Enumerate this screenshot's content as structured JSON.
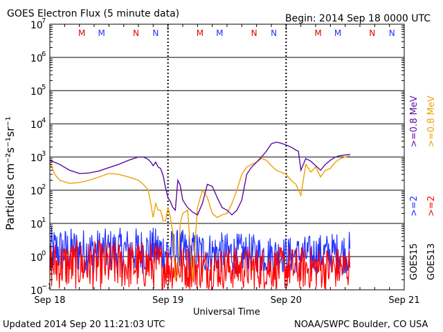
{
  "chart_data": {
    "type": "line",
    "title": "GOES Electron Flux (5 minute data)",
    "begin_label": "Begin: 2014 Sep 18 0000 UTC",
    "xlabel": "Universal Time",
    "ylabel": "Particles cm⁻²s⁻¹sr⁻¹",
    "y_scale": "log",
    "ylim_exponents": [
      -1,
      7
    ],
    "y_tick_base": "10",
    "y_tick_exponents": [
      "7",
      "6",
      "5",
      "4",
      "3",
      "2",
      "1",
      "0",
      "−1"
    ],
    "x_ticks": [
      "Sep 18",
      "Sep 19",
      "Sep 20",
      "Sep 21"
    ],
    "threshold_line": 1000,
    "grid": true,
    "noon_midnight_markers": [
      "M",
      "M",
      "N",
      "N",
      "M",
      "M",
      "N",
      "N",
      "M",
      "M",
      "N",
      "N"
    ],
    "marker_colors": [
      "#e00000",
      "#2030ff",
      "#e00000",
      "#2030ff",
      "#e00000",
      "#2030ff",
      "#e00000",
      "#2030ff",
      "#e00000",
      "#2030ff",
      "#e00000",
      "#2030ff"
    ],
    "right_labels": {
      "ge08_goes15": ">=0.8 MeV",
      "ge08_goes13": ">=0.8 MeV",
      "ge2_goes15": ">=2",
      "ge2_goes13": ">=2",
      "goes15": "GOES15",
      "goes13": "GOES13"
    },
    "colors": {
      "goes15_ge08": "#5a0aa0",
      "goes13_ge08": "#f0a000",
      "goes15_ge2": "#2030ff",
      "goes13_ge2": "#ff0000"
    },
    "series": [
      {
        "name": "GOES15 >=0.8 MeV",
        "x_hours": [
          0,
          2,
          4,
          6,
          8,
          10,
          12,
          14,
          16,
          18,
          19,
          20,
          20.5,
          21,
          21.5,
          22,
          22.5,
          23,
          23.5,
          24,
          24.5,
          25,
          25.5,
          26,
          26.5,
          27,
          28,
          29,
          30,
          31,
          32,
          33,
          34,
          35,
          36,
          37,
          38,
          39,
          40,
          41,
          42,
          43,
          44,
          45,
          46,
          47,
          48,
          49,
          49.5,
          50,
          50.5,
          51,
          52,
          53,
          54,
          55,
          56,
          57,
          58,
          59,
          60,
          61
        ],
        "y": [
          800,
          600,
          400,
          320,
          330,
          380,
          480,
          600,
          800,
          1000,
          1000,
          850,
          700,
          550,
          700,
          500,
          450,
          280,
          120,
          60,
          45,
          30,
          25,
          200,
          140,
          50,
          30,
          22,
          18,
          40,
          150,
          130,
          60,
          30,
          25,
          18,
          25,
          50,
          300,
          500,
          700,
          1000,
          1500,
          2500,
          2800,
          2600,
          2300,
          2000,
          1800,
          1600,
          1500,
          400,
          900,
          750,
          550,
          400,
          600,
          800,
          1000,
          1100,
          1150,
          1200
        ]
      },
      {
        "name": "GOES13 >=0.8 MeV",
        "x_hours": [
          0,
          1,
          2,
          4,
          6,
          8,
          10,
          12,
          14,
          16,
          18,
          19,
          20,
          20.5,
          21,
          21.5,
          22,
          22.5,
          23,
          23.5,
          24,
          24.5,
          25,
          25.5,
          26,
          26.5,
          27,
          28,
          29,
          30,
          31,
          32,
          33,
          34,
          35,
          36,
          37,
          38,
          39,
          40,
          41,
          42,
          43,
          44,
          45,
          46,
          47,
          48,
          49,
          50,
          51,
          52,
          53,
          54,
          55,
          56,
          57,
          58,
          59,
          60,
          61
        ],
        "y": [
          700,
          300,
          200,
          160,
          170,
          200,
          250,
          320,
          300,
          250,
          200,
          150,
          100,
          40,
          15,
          40,
          25,
          25,
          12,
          12,
          30,
          15,
          5,
          0.2,
          0.3,
          10,
          20,
          25,
          0.2,
          30,
          100,
          60,
          20,
          15,
          18,
          20,
          40,
          100,
          300,
          500,
          600,
          700,
          900,
          800,
          550,
          400,
          350,
          300,
          200,
          150,
          70,
          600,
          350,
          500,
          250,
          400,
          450,
          700,
          900,
          1000,
          1100
        ]
      },
      {
        "name": "GOES15 >=2 MeV",
        "style": "noisy",
        "x_hours": [
          0,
          10,
          20,
          30,
          40,
          50,
          61
        ],
        "y_center": [
          2,
          2,
          2,
          2,
          2,
          2,
          2
        ],
        "y_low": [
          0.3,
          0.3,
          0.3,
          0.3,
          0.3,
          0.3,
          0.3
        ],
        "y_high": [
          8,
          7,
          8,
          6,
          5,
          4,
          6
        ]
      },
      {
        "name": "GOES13 >=2 MeV",
        "style": "noisy",
        "x_hours": [
          0,
          10,
          20,
          30,
          40,
          50,
          61
        ],
        "y_center": [
          0.6,
          0.6,
          0.6,
          0.6,
          0.6,
          0.6,
          0.6
        ],
        "y_low": [
          0.1,
          0.1,
          0.1,
          0.1,
          0.1,
          0.1,
          0.1
        ],
        "y_high": [
          3,
          3,
          3,
          2,
          2,
          2,
          2
        ]
      }
    ]
  },
  "footer": {
    "updated": "Updated 2014 Sep 20 11:21:03 UTC",
    "credit": "NOAA/SWPC Boulder, CO USA"
  }
}
